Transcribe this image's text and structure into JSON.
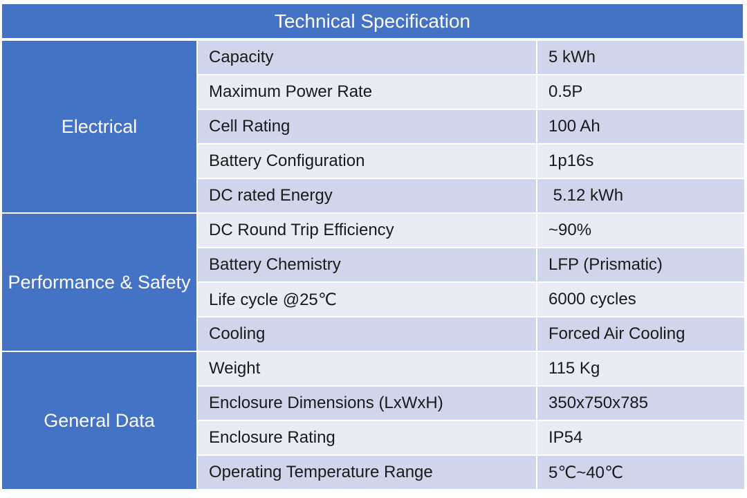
{
  "title": "Technical Specification",
  "sections": [
    {
      "name": "Electrical",
      "rows": [
        {
          "label": "Capacity",
          "value": "5 kWh"
        },
        {
          "label": "Maximum Power Rate",
          "value": "0.5P"
        },
        {
          "label": "Cell Rating",
          "value": "100 Ah"
        },
        {
          "label": "Battery Configuration",
          "value": "1p16s"
        },
        {
          "label": "DC rated Energy",
          "value": " 5.12 kWh"
        }
      ]
    },
    {
      "name": "Performance & Safety",
      "rows": [
        {
          "label": "DC Round Trip Efficiency",
          "value": "~90%"
        },
        {
          "label": "Battery Chemistry",
          "value": "LFP (Prismatic)"
        },
        {
          "label": "Life cycle @25℃",
          "value": "6000 cycles"
        },
        {
          "label": "Cooling",
          "value": "Forced Air Cooling"
        }
      ]
    },
    {
      "name": "General Data",
      "rows": [
        {
          "label": "Weight",
          "value": "115 Kg"
        },
        {
          "label": "Enclosure Dimensions (LxWxH)",
          "value": "350x750x785"
        },
        {
          "label": "Enclosure Rating",
          "value": "IP54"
        },
        {
          "label": "Operating Temperature Range",
          "value": "5℃~40℃"
        }
      ]
    }
  ]
}
